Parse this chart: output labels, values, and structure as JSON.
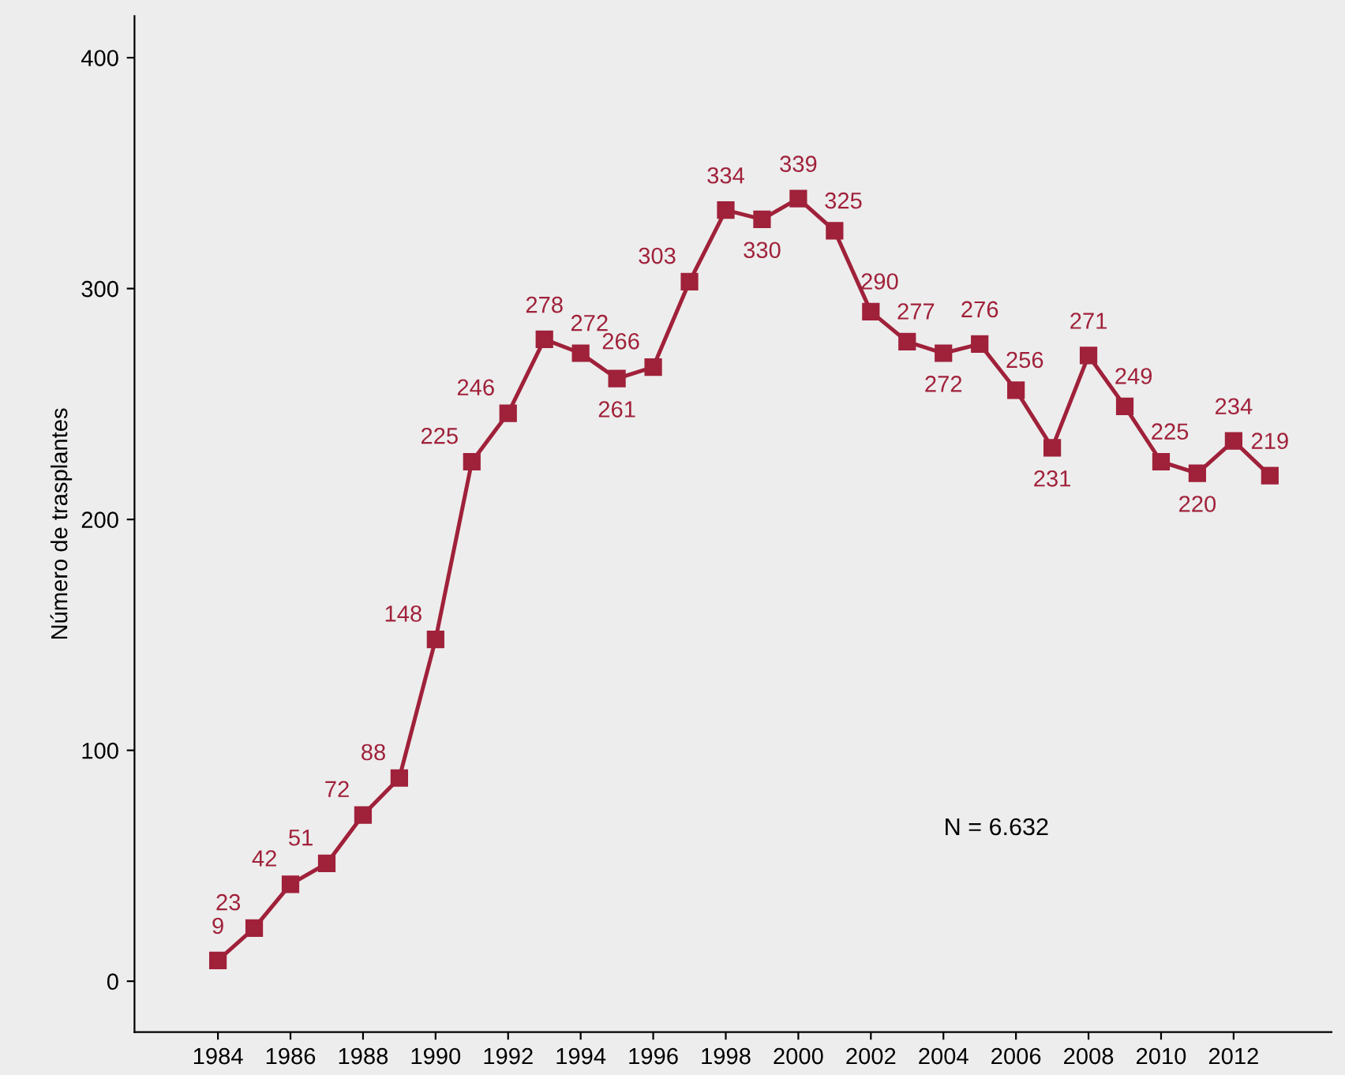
{
  "chart_data": {
    "type": "line",
    "ylabel": "Número de trasplantes",
    "x": [
      1984,
      1985,
      1986,
      1987,
      1988,
      1989,
      1990,
      1991,
      1992,
      1993,
      1994,
      1995,
      1996,
      1997,
      1998,
      1999,
      2000,
      2001,
      2002,
      2003,
      2004,
      2005,
      2006,
      2007,
      2008,
      2009,
      2010,
      2011,
      2012,
      2013
    ],
    "series": [
      {
        "color": "#a0213a",
        "values": [
          9,
          23,
          42,
          51,
          72,
          88,
          148,
          225,
          246,
          278,
          272,
          261,
          266,
          303,
          334,
          330,
          339,
          325,
          290,
          277,
          272,
          276,
          256,
          231,
          271,
          249,
          225,
          220,
          234,
          219
        ]
      }
    ],
    "xlim": [
      1981.7,
      2014.7
    ],
    "xticks": [
      1984,
      1986,
      1988,
      1990,
      1992,
      1994,
      1996,
      1998,
      2000,
      2002,
      2004,
      2006,
      2008,
      2010,
      2012
    ],
    "ylim": [
      -22,
      418
    ],
    "yticks": [
      0,
      100,
      200,
      300,
      400
    ],
    "marker": "square",
    "line_style": "solid",
    "data_labels": true,
    "grid": false,
    "legend": false,
    "annotations": [
      "N = 6.632"
    ]
  }
}
